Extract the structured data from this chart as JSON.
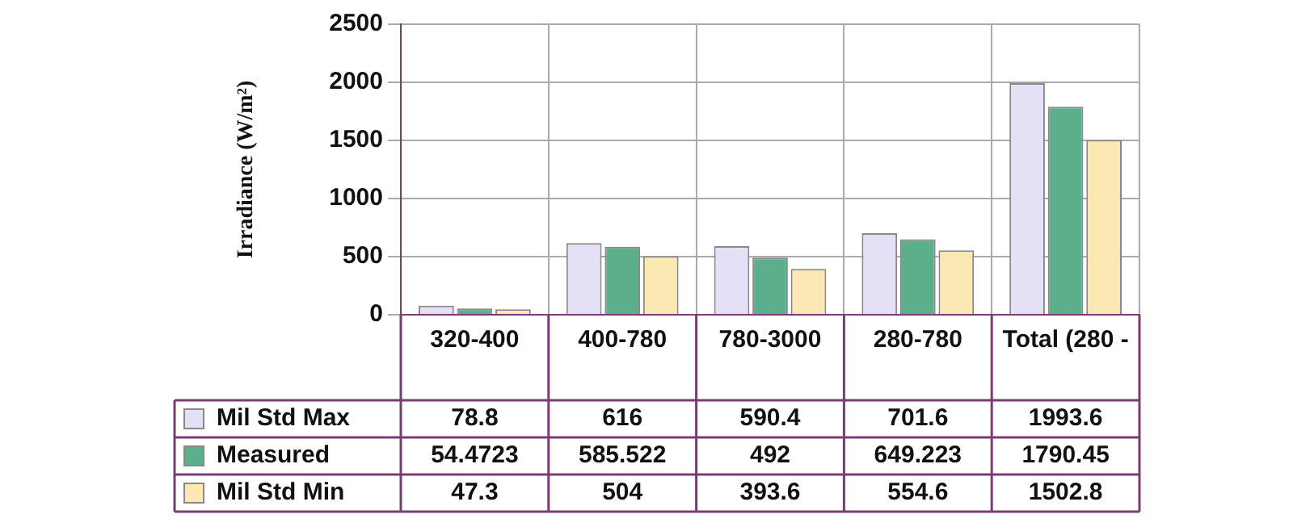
{
  "chart_data": {
    "type": "bar",
    "ylabel": "Irradiance (W/m²)",
    "categories": [
      "320-400",
      "400-780",
      "780-3000",
      "280-780",
      "Total (280 -"
    ],
    "series": [
      {
        "name": "Mil Std Max",
        "color": "#e4e0f6",
        "values": [
          78.8,
          616,
          590.4,
          701.6,
          1993.6
        ]
      },
      {
        "name": "Measured",
        "color": "#5bb08b",
        "values": [
          54.4723,
          585.522,
          492,
          649.223,
          1790.45
        ]
      },
      {
        "name": "Mil Std Min",
        "color": "#fce8b2",
        "values": [
          47.3,
          504,
          393.6,
          554.6,
          1502.8
        ]
      }
    ],
    "ylim": [
      0,
      2500
    ],
    "yticks": [
      0,
      500,
      1000,
      1500,
      2000,
      2500
    ],
    "grid": true,
    "data_labels": true,
    "legend": "bottom left"
  }
}
